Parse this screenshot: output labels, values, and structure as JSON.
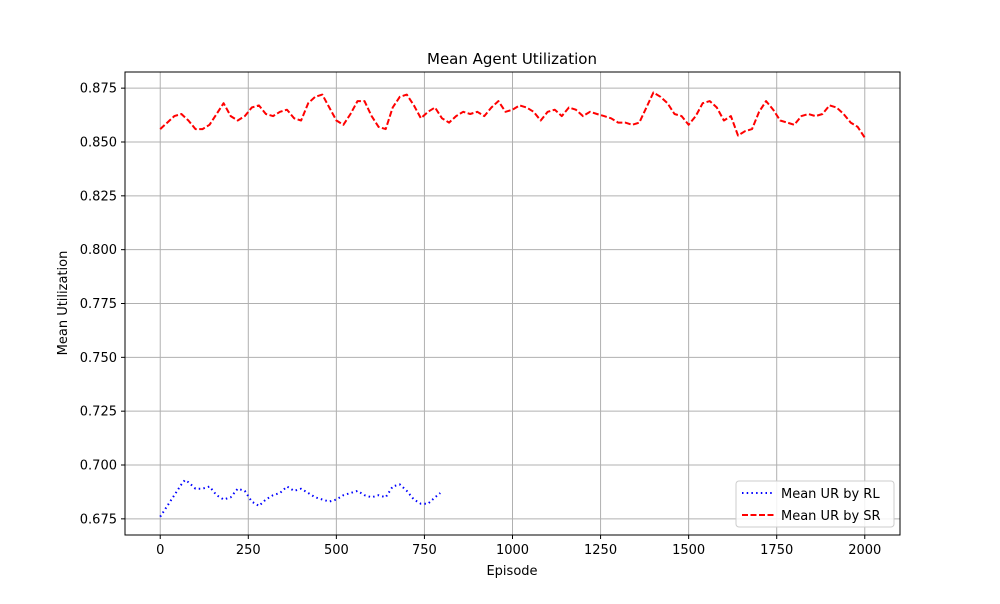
{
  "chart_data": {
    "type": "line",
    "title": "Mean Agent Utilization",
    "xlabel": "Episode",
    "ylabel": "Mean Utilization",
    "xlim": [
      -100,
      2100
    ],
    "ylim": [
      0.6675,
      0.8825
    ],
    "xticks": [
      0,
      250,
      500,
      750,
      1000,
      1250,
      1500,
      1750,
      2000
    ],
    "xtick_labels": [
      "0",
      "250",
      "500",
      "750",
      "1000",
      "1250",
      "1500",
      "1750",
      "2000"
    ],
    "yticks": [
      0.675,
      0.7,
      0.725,
      0.75,
      0.775,
      0.8,
      0.825,
      0.85,
      0.875
    ],
    "ytick_labels": [
      "0.675",
      "0.700",
      "0.725",
      "0.750",
      "0.775",
      "0.800",
      "0.825",
      "0.850",
      "0.875"
    ],
    "grid": true,
    "legend_position": "lower-right",
    "series": [
      {
        "name": "Mean UR by RL",
        "color": "#0000ff",
        "line_style": "dotted",
        "x": [
          0,
          20,
          40,
          60,
          70,
          80,
          100,
          120,
          140,
          160,
          180,
          200,
          220,
          240,
          260,
          280,
          300,
          320,
          340,
          360,
          380,
          400,
          420,
          440,
          460,
          480,
          500,
          520,
          540,
          560,
          580,
          600,
          620,
          640,
          660,
          680,
          700,
          720,
          740,
          760,
          780,
          795
        ],
        "y": [
          0.676,
          0.681,
          0.686,
          0.691,
          0.693,
          0.692,
          0.689,
          0.689,
          0.69,
          0.686,
          0.684,
          0.685,
          0.689,
          0.688,
          0.683,
          0.681,
          0.684,
          0.686,
          0.687,
          0.69,
          0.688,
          0.689,
          0.687,
          0.685,
          0.684,
          0.683,
          0.684,
          0.686,
          0.687,
          0.688,
          0.686,
          0.685,
          0.686,
          0.685,
          0.69,
          0.691,
          0.688,
          0.684,
          0.682,
          0.682,
          0.685,
          0.687
        ]
      },
      {
        "name": "Mean UR by SR",
        "color": "#ff0000",
        "line_style": "dashed",
        "x": [
          0,
          20,
          40,
          60,
          80,
          100,
          120,
          140,
          160,
          180,
          200,
          220,
          240,
          260,
          280,
          300,
          320,
          340,
          360,
          380,
          400,
          420,
          440,
          460,
          480,
          500,
          520,
          540,
          560,
          580,
          600,
          620,
          640,
          660,
          680,
          700,
          720,
          740,
          760,
          780,
          800,
          820,
          840,
          860,
          880,
          900,
          920,
          940,
          960,
          980,
          1000,
          1020,
          1040,
          1060,
          1080,
          1100,
          1120,
          1140,
          1160,
          1180,
          1200,
          1220,
          1240,
          1260,
          1280,
          1300,
          1320,
          1340,
          1360,
          1380,
          1400,
          1420,
          1440,
          1460,
          1480,
          1500,
          1520,
          1540,
          1560,
          1580,
          1600,
          1620,
          1640,
          1660,
          1680,
          1700,
          1720,
          1740,
          1760,
          1780,
          1800,
          1820,
          1840,
          1860,
          1880,
          1900,
          1920,
          1940,
          1960,
          1980,
          2000
        ],
        "y": [
          0.856,
          0.859,
          0.862,
          0.863,
          0.86,
          0.856,
          0.856,
          0.858,
          0.863,
          0.868,
          0.862,
          0.86,
          0.862,
          0.866,
          0.867,
          0.863,
          0.862,
          0.864,
          0.865,
          0.861,
          0.86,
          0.868,
          0.871,
          0.872,
          0.866,
          0.86,
          0.858,
          0.863,
          0.869,
          0.869,
          0.862,
          0.857,
          0.856,
          0.866,
          0.871,
          0.872,
          0.867,
          0.861,
          0.864,
          0.866,
          0.861,
          0.859,
          0.862,
          0.864,
          0.863,
          0.864,
          0.862,
          0.866,
          0.869,
          0.864,
          0.865,
          0.867,
          0.866,
          0.864,
          0.86,
          0.864,
          0.865,
          0.862,
          0.866,
          0.865,
          0.862,
          0.864,
          0.863,
          0.862,
          0.861,
          0.859,
          0.859,
          0.858,
          0.859,
          0.866,
          0.873,
          0.871,
          0.868,
          0.863,
          0.862,
          0.858,
          0.862,
          0.868,
          0.869,
          0.866,
          0.86,
          0.862,
          0.853,
          0.855,
          0.856,
          0.864,
          0.869,
          0.865,
          0.86,
          0.859,
          0.858,
          0.862,
          0.863,
          0.862,
          0.863,
          0.867,
          0.866,
          0.863,
          0.859,
          0.857,
          0.852
        ]
      }
    ]
  }
}
